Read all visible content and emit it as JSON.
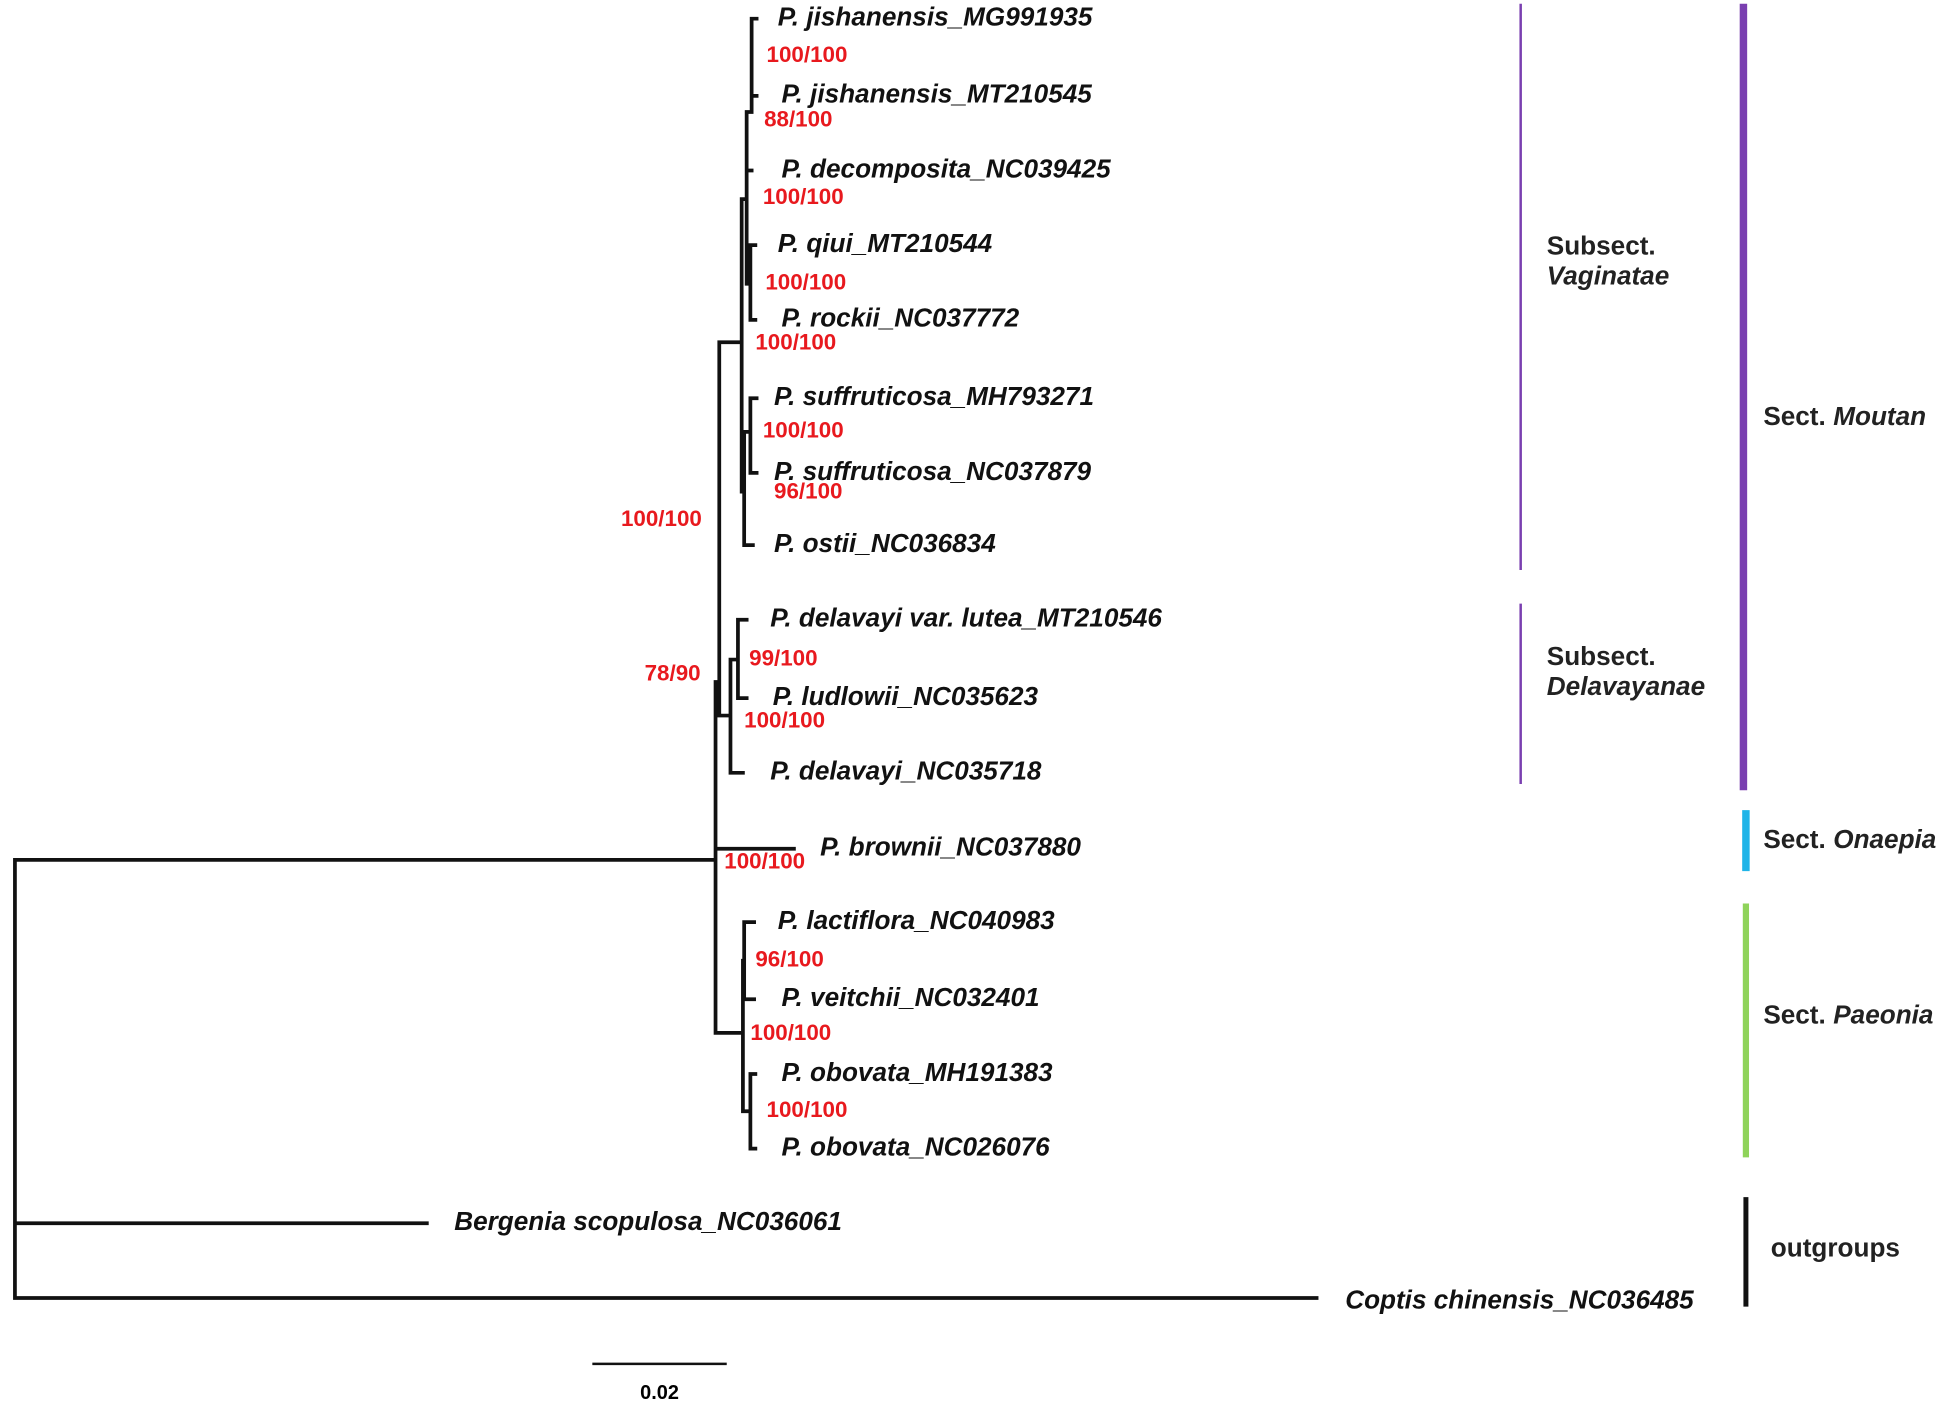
{
  "taxa": [
    "P. jishanensis_MG991935",
    "P. jishanensis_MT210545",
    "P. decomposita_NC039425",
    "P. qiui_MT210544",
    "P. rockii_NC037772",
    "P. suffruticosa_MH793271",
    "P. suffruticosa_NC037879",
    "P. ostii_NC036834",
    "P. delavayi var. lutea_MT210546",
    "P. ludlowii_NC035623",
    "P. delavayi_NC035718",
    "P. brownii_NC037880",
    "P. lactiflora_NC040983",
    "P. veitchii_NC032401",
    "P. obovata_MH191383",
    "P. obovata_NC026076",
    "Bergenia scopulosa_NC036061",
    "Coptis chinensis_NC036485"
  ],
  "supports": [
    "100/100",
    "88/100",
    "100/100",
    "100/100",
    "100/100",
    "100/100",
    "96/100",
    "100/100",
    "99/100",
    "78/90",
    "100/100",
    "100/100",
    "96/100",
    "100/100",
    "100/100"
  ],
  "clades": [
    {
      "prefix": "Subsect.",
      "name": "Vaginatae"
    },
    {
      "prefix": "Subsect.",
      "name": "Delavayanae"
    },
    {
      "prefix": "Sect.",
      "name": "Moutan"
    },
    {
      "prefix": "Sect.",
      "name": "Onaepia"
    },
    {
      "prefix": "Sect.",
      "name": "Paeonia"
    },
    {
      "name": "outgroups"
    }
  ],
  "scale_bar": "0.02"
}
